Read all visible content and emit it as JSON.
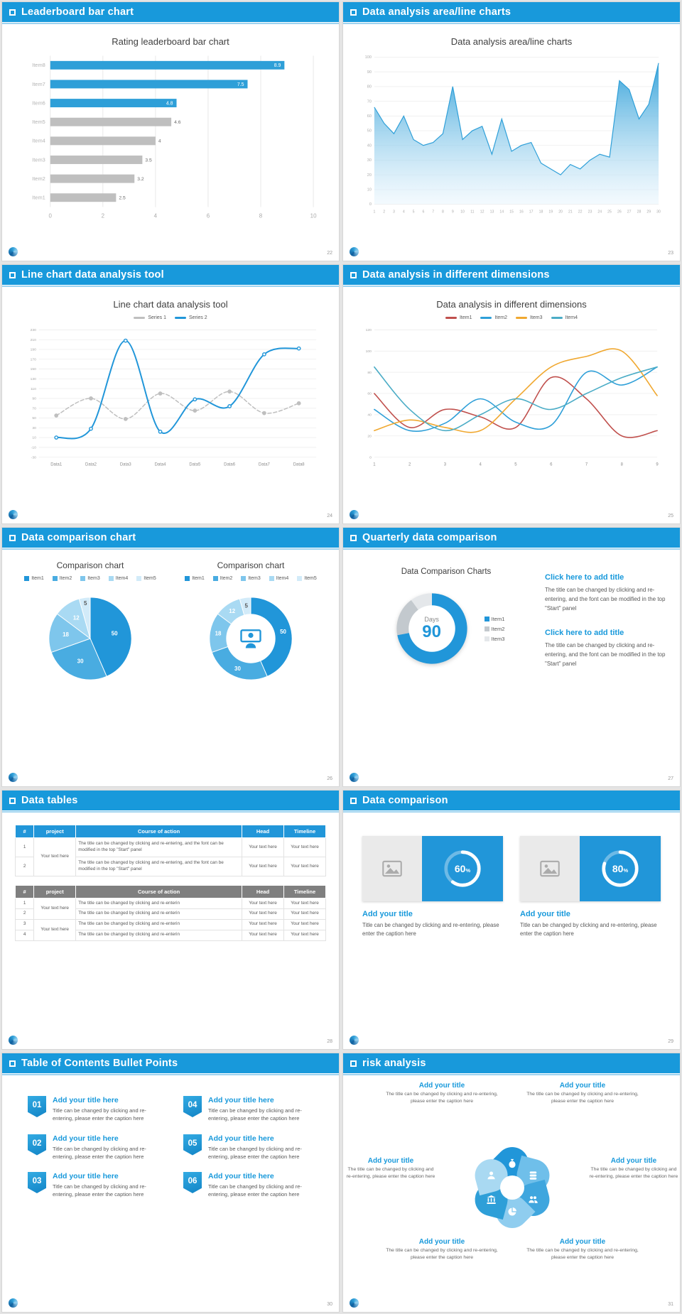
{
  "app": {
    "accent": "#1899DB",
    "percent_sign": "%"
  },
  "slides": [
    {
      "header": "Leaderboard bar chart",
      "page": "22",
      "chart_data": {
        "type": "bar",
        "orientation": "horizontal",
        "title": "Rating leaderboard bar chart",
        "categories": [
          "Item1",
          "Item2",
          "Item3",
          "Item4",
          "Item5",
          "Item6",
          "Item7",
          "Item8"
        ],
        "values": [
          2.5,
          3.2,
          3.5,
          4,
          4.6,
          4.8,
          7.5,
          8.9
        ],
        "accent": "#2E9FD8",
        "bar_colors": [
          "#BFBFBF",
          "#BFBFBF",
          "#BFBFBF",
          "#BFBFBF",
          "#BFBFBF",
          "#2E9FD8",
          "#2E9FD8",
          "#2E9FD8"
        ],
        "xlim": [
          0,
          10
        ],
        "xticks": [
          0,
          2,
          4,
          6,
          8,
          10
        ]
      }
    },
    {
      "header": "Data analysis area/line charts",
      "page": "23",
      "chart_data": {
        "type": "area",
        "title": "Data analysis area/line charts",
        "x": [
          1,
          2,
          3,
          4,
          5,
          6,
          7,
          8,
          9,
          10,
          11,
          12,
          13,
          14,
          15,
          16,
          17,
          18,
          19,
          20,
          21,
          22,
          23,
          24,
          25,
          26,
          27,
          28,
          29,
          30
        ],
        "values": [
          66,
          55,
          48,
          60,
          44,
          40,
          42,
          48,
          80,
          44,
          50,
          53,
          34,
          58,
          36,
          40,
          42,
          28,
          24,
          20,
          27,
          24,
          30,
          34,
          32,
          84,
          78,
          58,
          68,
          96
        ],
        "ylim": [
          0,
          100
        ],
        "ystep": 10,
        "fill_top": "#2E9FD8",
        "fill_bottom": "#E8F5FD",
        "line_color": "#2E9FD8"
      }
    },
    {
      "header": "Line chart data analysis tool",
      "page": "24",
      "chart_data": {
        "type": "line",
        "title": "Line chart data analysis tool",
        "categories": [
          "Data1",
          "Data2",
          "Data3",
          "Data4",
          "Data5",
          "Data6",
          "Data7",
          "Data8"
        ],
        "ylim": [
          -30,
          230
        ],
        "ystep": 20,
        "series": [
          {
            "name": "Series 1",
            "color": "#BFBFBF",
            "dashed": true,
            "width": 1.5,
            "marker": "solid",
            "values": [
              55,
              90,
              48,
              100,
              65,
              104,
              60,
              80
            ]
          },
          {
            "name": "Series 2",
            "color": "#2196D9",
            "dashed": false,
            "width": 2,
            "marker": "open",
            "values": [
              10,
              28,
              208,
              22,
              88,
              74,
              180,
              192
            ]
          }
        ]
      }
    },
    {
      "header": "Data analysis in different dimensions",
      "page": "25",
      "chart_data": {
        "type": "line",
        "title": "Data analysis in different dimensions",
        "x": [
          1,
          2,
          3,
          4,
          5,
          6,
          7,
          8,
          9
        ],
        "ylim": [
          0,
          120
        ],
        "ystep": 20,
        "series": [
          {
            "name": "Item1",
            "color": "#C0504D",
            "width": 1.6,
            "values": [
              60,
              28,
              45,
              38,
              28,
              75,
              55,
              20,
              25
            ]
          },
          {
            "name": "Item2",
            "color": "#2E9FD8",
            "width": 1.6,
            "values": [
              45,
              25,
              32,
              55,
              33,
              30,
              80,
              68,
              85
            ]
          },
          {
            "name": "Item3",
            "color": "#F0A830",
            "width": 1.6,
            "values": [
              25,
              35,
              28,
              25,
              55,
              85,
              95,
              100,
              58
            ]
          },
          {
            "name": "Item4",
            "color": "#4BACC6",
            "width": 1.6,
            "values": [
              85,
              45,
              25,
              40,
              55,
              45,
              60,
              75,
              85
            ]
          }
        ]
      }
    },
    {
      "header": "Data comparison chart",
      "page": "26",
      "left_title": "Comparison chart",
      "right_title": "Comparison chart",
      "chart_data": {
        "type": "pie",
        "labels": [
          "Item1",
          "Item2",
          "Item3",
          "Item4",
          "Item5"
        ],
        "values": [
          50,
          30,
          18,
          12,
          5
        ],
        "colors": [
          "#2196D9",
          "#49ACE1",
          "#7EC6EC",
          "#A9DAF3",
          "#D2EBF9"
        ],
        "label_colors": [
          "#ffffff",
          "#ffffff",
          "#ffffff",
          "#ffffff",
          "#595959"
        ],
        "center_icon": "presenter-icon"
      }
    },
    {
      "header": "Quarterly data comparison",
      "page": "27",
      "chart_title": "Data Comparison Charts",
      "donut": {
        "type": "pie",
        "values": [
          72,
          18,
          10
        ],
        "colors": [
          "#2196D9",
          "#C3C9CE",
          "#E4E7EA"
        ],
        "labels": [
          "Item1",
          "Item2",
          "Item3"
        ],
        "center_label": "Days",
        "center_value": "90"
      },
      "blocks": [
        {
          "title": "Click here to add title",
          "body": "The title can be changed by clicking and re-entering, and the font can be modified in the top \"Start\" panel"
        },
        {
          "title": "Click here to add title",
          "body": "The title can be changed by clicking and re-entering, and the font can be modified in the top \"Start\" panel"
        }
      ]
    },
    {
      "header": "Data tables",
      "page": "28",
      "table1": {
        "header_bg": "#2196D9",
        "columns": [
          "#",
          "project",
          "Course of action",
          "Head",
          "Timeline"
        ],
        "rows": [
          {
            "num": "1",
            "project": "Your text here",
            "project_span": 2,
            "course": "The title can be changed by clicking and re-entering, and the font can be modified in the top \"Start\" panel",
            "head": "Your text here",
            "timeline": "Your text here"
          },
          {
            "num": "2",
            "course": "The title can be changed by clicking and re-entering, and the font can be modified in the top \"Start\" panel",
            "head": "Your text here",
            "timeline": "Your text here"
          }
        ]
      },
      "table2": {
        "header_bg": "#7F7F7F",
        "columns": [
          "#",
          "project",
          "Course of action",
          "Head",
          "Timeline"
        ],
        "rows": [
          {
            "num": "1",
            "project": "Your text here",
            "project_span": 2,
            "course": "The title can be changed by clicking and re-enterin",
            "head": "Your text here",
            "timeline": "Your text here"
          },
          {
            "num": "2",
            "course": "The title can be changed by clicking and re-enterin",
            "head": "Your text here",
            "timeline": "Your text here"
          },
          {
            "num": "3",
            "project": "Your text here",
            "project_span": 2,
            "course": "The title can be changed by clicking and re-enterin",
            "head": "Your text here",
            "timeline": "Your text here"
          },
          {
            "num": "4",
            "course": "The title can be changed by clicking and re-enterin",
            "head": "Your text here",
            "timeline": "Your text here"
          }
        ]
      }
    },
    {
      "header": "Data comparison",
      "page": "29",
      "cards": [
        {
          "icon": "image-placeholder-icon",
          "percent": 60,
          "title": "Add your title",
          "caption": "Title can be changed by clicking and re-entering, please enter the caption here"
        },
        {
          "icon": "image-placeholder-icon",
          "percent": 80,
          "title": "Add your title",
          "caption": "Title can be changed by clicking and re-entering, please enter the caption here"
        }
      ]
    },
    {
      "header": "Table of Contents Bullet Points",
      "page": "30",
      "items": [
        {
          "num": "01",
          "title": "Add your title here",
          "caption": "Title can be changed by clicking and re-entering, please enter the caption here"
        },
        {
          "num": "04",
          "title": "Add your title here",
          "caption": "Title can be changed by clicking and re-entering, please enter the caption here"
        },
        {
          "num": "02",
          "title": "Add your title here",
          "caption": "Title can be changed by clicking and re-entering, please enter the caption here"
        },
        {
          "num": "05",
          "title": "Add your title here",
          "caption": "Title can be changed by clicking and re-entering, please enter the caption here"
        },
        {
          "num": "03",
          "title": "Add your title here",
          "caption": "Title can be changed by clicking and re-entering, please enter the caption here"
        },
        {
          "num": "06",
          "title": "Add your title here",
          "caption": "Title can be changed by clicking and re-entering, please enter the caption here"
        }
      ]
    },
    {
      "header": "risk analysis",
      "page": "31",
      "petals": [
        {
          "icon": "money-bag-icon",
          "color": "#2196D9"
        },
        {
          "icon": "coins-icon",
          "color": "#6FBFEA"
        },
        {
          "icon": "users-icon",
          "color": "#3FA6DE"
        },
        {
          "icon": "pie-chart-icon",
          "color": "#8FCDEF"
        },
        {
          "icon": "bank-icon",
          "color": "#2E9FD8"
        },
        {
          "icon": "user-icon",
          "color": "#A9D9F2"
        }
      ],
      "blocks": [
        {
          "title": "Add your title",
          "caption": "The title can be changed by clicking and re-entering, please enter the caption here"
        },
        {
          "title": "Add your title",
          "caption": "The title can be changed by clicking and re-entering, please enter the caption here"
        },
        {
          "title": "Add your title",
          "caption": "The title can be changed by clicking and re-entering, please enter the caption here"
        },
        {
          "title": "Add your title",
          "caption": "The title can be changed by clicking and re-entering, please enter the caption here"
        },
        {
          "title": "Add your title",
          "caption": "The title can be changed by clicking and re-entering, please enter the caption here"
        },
        {
          "title": "Add your title",
          "caption": "The title can be changed by clicking and re-entering, please enter the caption here"
        }
      ]
    }
  ]
}
